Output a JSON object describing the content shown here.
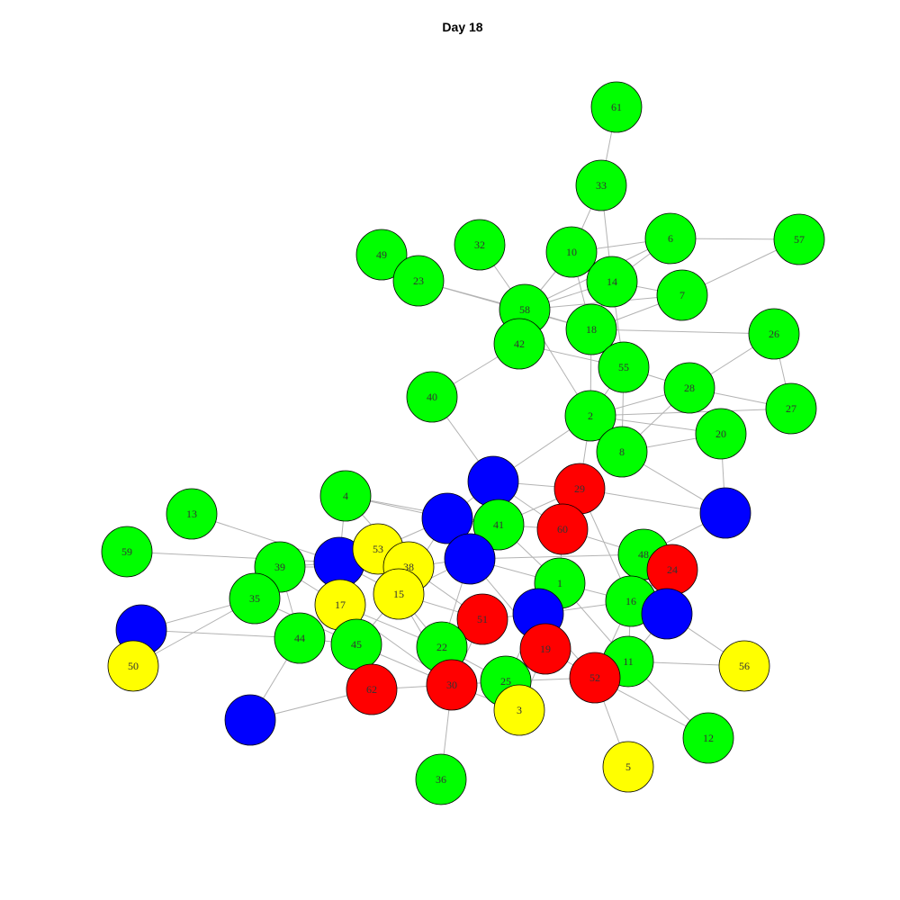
{
  "title": "Day 18",
  "colors": {
    "green": "#00ff00",
    "red": "#ff0000",
    "blue": "#0000ff",
    "yellow": "#ffff00",
    "edge": "#b3b3b3"
  },
  "nodes": [
    {
      "id": "61",
      "color": "green"
    },
    {
      "id": "33",
      "color": "green"
    },
    {
      "id": "6",
      "color": "green"
    },
    {
      "id": "57",
      "color": "green"
    },
    {
      "id": "10",
      "color": "green"
    },
    {
      "id": "14",
      "color": "green"
    },
    {
      "id": "32",
      "color": "green"
    },
    {
      "id": "49",
      "color": "green"
    },
    {
      "id": "23",
      "color": "green"
    },
    {
      "id": "7",
      "color": "green"
    },
    {
      "id": "58",
      "color": "green"
    },
    {
      "id": "42",
      "color": "green"
    },
    {
      "id": "18",
      "color": "green"
    },
    {
      "id": "26",
      "color": "green"
    },
    {
      "id": "55",
      "color": "green"
    },
    {
      "id": "28",
      "color": "green"
    },
    {
      "id": "27",
      "color": "green"
    },
    {
      "id": "40",
      "color": "green"
    },
    {
      "id": "2",
      "color": "green"
    },
    {
      "id": "20",
      "color": "green"
    },
    {
      "id": "8",
      "color": "green"
    },
    {
      "id": "b1",
      "color": "blue",
      "label": ""
    },
    {
      "id": "29",
      "color": "red"
    },
    {
      "id": "4",
      "color": "green"
    },
    {
      "id": "b2",
      "color": "blue",
      "label": ""
    },
    {
      "id": "41",
      "color": "green"
    },
    {
      "id": "60",
      "color": "red"
    },
    {
      "id": "b3",
      "color": "blue",
      "label": ""
    },
    {
      "id": "13",
      "color": "green"
    },
    {
      "id": "48",
      "color": "green"
    },
    {
      "id": "24",
      "color": "red"
    },
    {
      "id": "59",
      "color": "green"
    },
    {
      "id": "39",
      "color": "green"
    },
    {
      "id": "b4",
      "color": "blue",
      "label": ""
    },
    {
      "id": "53",
      "color": "yellow"
    },
    {
      "id": "38",
      "color": "yellow"
    },
    {
      "id": "b5",
      "color": "blue",
      "label": ""
    },
    {
      "id": "1",
      "color": "green"
    },
    {
      "id": "35",
      "color": "green"
    },
    {
      "id": "17",
      "color": "yellow"
    },
    {
      "id": "15",
      "color": "yellow"
    },
    {
      "id": "16",
      "color": "green"
    },
    {
      "id": "b6",
      "color": "blue",
      "label": ""
    },
    {
      "id": "51",
      "color": "red"
    },
    {
      "id": "b7",
      "color": "blue",
      "label": ""
    },
    {
      "id": "b8",
      "color": "blue",
      "label": ""
    },
    {
      "id": "44",
      "color": "green"
    },
    {
      "id": "45",
      "color": "green"
    },
    {
      "id": "22",
      "color": "green"
    },
    {
      "id": "19",
      "color": "red"
    },
    {
      "id": "11",
      "color": "green"
    },
    {
      "id": "56",
      "color": "yellow"
    },
    {
      "id": "50",
      "color": "yellow"
    },
    {
      "id": "62",
      "color": "red"
    },
    {
      "id": "30",
      "color": "red"
    },
    {
      "id": "25",
      "color": "green"
    },
    {
      "id": "52",
      "color": "red"
    },
    {
      "id": "3",
      "color": "yellow"
    },
    {
      "id": "b9",
      "color": "blue",
      "label": ""
    },
    {
      "id": "12",
      "color": "green"
    },
    {
      "id": "36",
      "color": "green"
    },
    {
      "id": "5",
      "color": "yellow"
    }
  ],
  "edges": [
    [
      "61",
      "33"
    ],
    [
      "33",
      "10"
    ],
    [
      "33",
      "14"
    ],
    [
      "6",
      "57"
    ],
    [
      "6",
      "10"
    ],
    [
      "6",
      "14"
    ],
    [
      "6",
      "58"
    ],
    [
      "57",
      "7"
    ],
    [
      "10",
      "58"
    ],
    [
      "10",
      "14"
    ],
    [
      "10",
      "18"
    ],
    [
      "14",
      "58"
    ],
    [
      "14",
      "7"
    ],
    [
      "14",
      "18"
    ],
    [
      "14",
      "55"
    ],
    [
      "7",
      "58"
    ],
    [
      "7",
      "18"
    ],
    [
      "32",
      "58"
    ],
    [
      "23",
      "58"
    ],
    [
      "23",
      "18"
    ],
    [
      "49",
      "23"
    ],
    [
      "58",
      "42"
    ],
    [
      "58",
      "18"
    ],
    [
      "58",
      "2"
    ],
    [
      "42",
      "40"
    ],
    [
      "42",
      "55"
    ],
    [
      "18",
      "26"
    ],
    [
      "18",
      "55"
    ],
    [
      "18",
      "2"
    ],
    [
      "26",
      "28"
    ],
    [
      "26",
      "27"
    ],
    [
      "55",
      "28"
    ],
    [
      "55",
      "8"
    ],
    [
      "55",
      "2"
    ],
    [
      "28",
      "27"
    ],
    [
      "28",
      "2"
    ],
    [
      "28",
      "8"
    ],
    [
      "2",
      "20"
    ],
    [
      "2",
      "27"
    ],
    [
      "2",
      "8"
    ],
    [
      "2",
      "b1"
    ],
    [
      "2",
      "29"
    ],
    [
      "20",
      "8"
    ],
    [
      "20",
      "b3"
    ],
    [
      "8",
      "b3"
    ],
    [
      "40",
      "b1"
    ],
    [
      "b1",
      "29"
    ],
    [
      "b1",
      "60"
    ],
    [
      "b1",
      "41"
    ],
    [
      "b1",
      "b2"
    ],
    [
      "29",
      "b3"
    ],
    [
      "29",
      "41"
    ],
    [
      "29",
      "16"
    ],
    [
      "b3",
      "48"
    ],
    [
      "4",
      "b2"
    ],
    [
      "4",
      "41"
    ],
    [
      "4",
      "38"
    ],
    [
      "4",
      "b4"
    ],
    [
      "b2",
      "53"
    ],
    [
      "b2",
      "41"
    ],
    [
      "b2",
      "15"
    ],
    [
      "41",
      "60"
    ],
    [
      "41",
      "b5"
    ],
    [
      "41",
      "1"
    ],
    [
      "60",
      "48"
    ],
    [
      "60",
      "1"
    ],
    [
      "48",
      "24"
    ],
    [
      "48",
      "b5"
    ],
    [
      "48",
      "16"
    ],
    [
      "48",
      "b6"
    ],
    [
      "24",
      "16"
    ],
    [
      "24",
      "b6"
    ],
    [
      "13",
      "b4"
    ],
    [
      "59",
      "b4"
    ],
    [
      "39",
      "b4"
    ],
    [
      "39",
      "38"
    ],
    [
      "39",
      "17"
    ],
    [
      "39",
      "35"
    ],
    [
      "39",
      "44"
    ],
    [
      "b4",
      "53"
    ],
    [
      "b4",
      "17"
    ],
    [
      "b4",
      "15"
    ],
    [
      "53",
      "38"
    ],
    [
      "53",
      "15"
    ],
    [
      "38",
      "b5"
    ],
    [
      "38",
      "51"
    ],
    [
      "b5",
      "15"
    ],
    [
      "b5",
      "1"
    ],
    [
      "b5",
      "19"
    ],
    [
      "b5",
      "22"
    ],
    [
      "1",
      "16"
    ],
    [
      "1",
      "b7"
    ],
    [
      "1",
      "11"
    ],
    [
      "35",
      "b8"
    ],
    [
      "35",
      "50"
    ],
    [
      "35",
      "45"
    ],
    [
      "17",
      "45"
    ],
    [
      "17",
      "22"
    ],
    [
      "17",
      "30"
    ],
    [
      "15",
      "45"
    ],
    [
      "15",
      "51"
    ],
    [
      "15",
      "30"
    ],
    [
      "15",
      "22"
    ],
    [
      "16",
      "b6"
    ],
    [
      "16",
      "11"
    ],
    [
      "16",
      "b7"
    ],
    [
      "16",
      "52"
    ],
    [
      "b6",
      "56"
    ],
    [
      "b6",
      "11"
    ],
    [
      "51",
      "b7"
    ],
    [
      "51",
      "22"
    ],
    [
      "51",
      "30"
    ],
    [
      "b7",
      "19"
    ],
    [
      "b7",
      "52"
    ],
    [
      "b7",
      "25"
    ],
    [
      "b8",
      "44"
    ],
    [
      "44",
      "45"
    ],
    [
      "44",
      "b9"
    ],
    [
      "45",
      "62"
    ],
    [
      "45",
      "30"
    ],
    [
      "22",
      "30"
    ],
    [
      "22",
      "25"
    ],
    [
      "19",
      "52"
    ],
    [
      "19",
      "3"
    ],
    [
      "11",
      "56"
    ],
    [
      "11",
      "52"
    ],
    [
      "11",
      "12"
    ],
    [
      "62",
      "30"
    ],
    [
      "62",
      "b9"
    ],
    [
      "30",
      "25"
    ],
    [
      "30",
      "36"
    ],
    [
      "30",
      "3"
    ],
    [
      "25",
      "52"
    ],
    [
      "25",
      "3"
    ],
    [
      "52",
      "5"
    ],
    [
      "52",
      "12"
    ]
  ]
}
